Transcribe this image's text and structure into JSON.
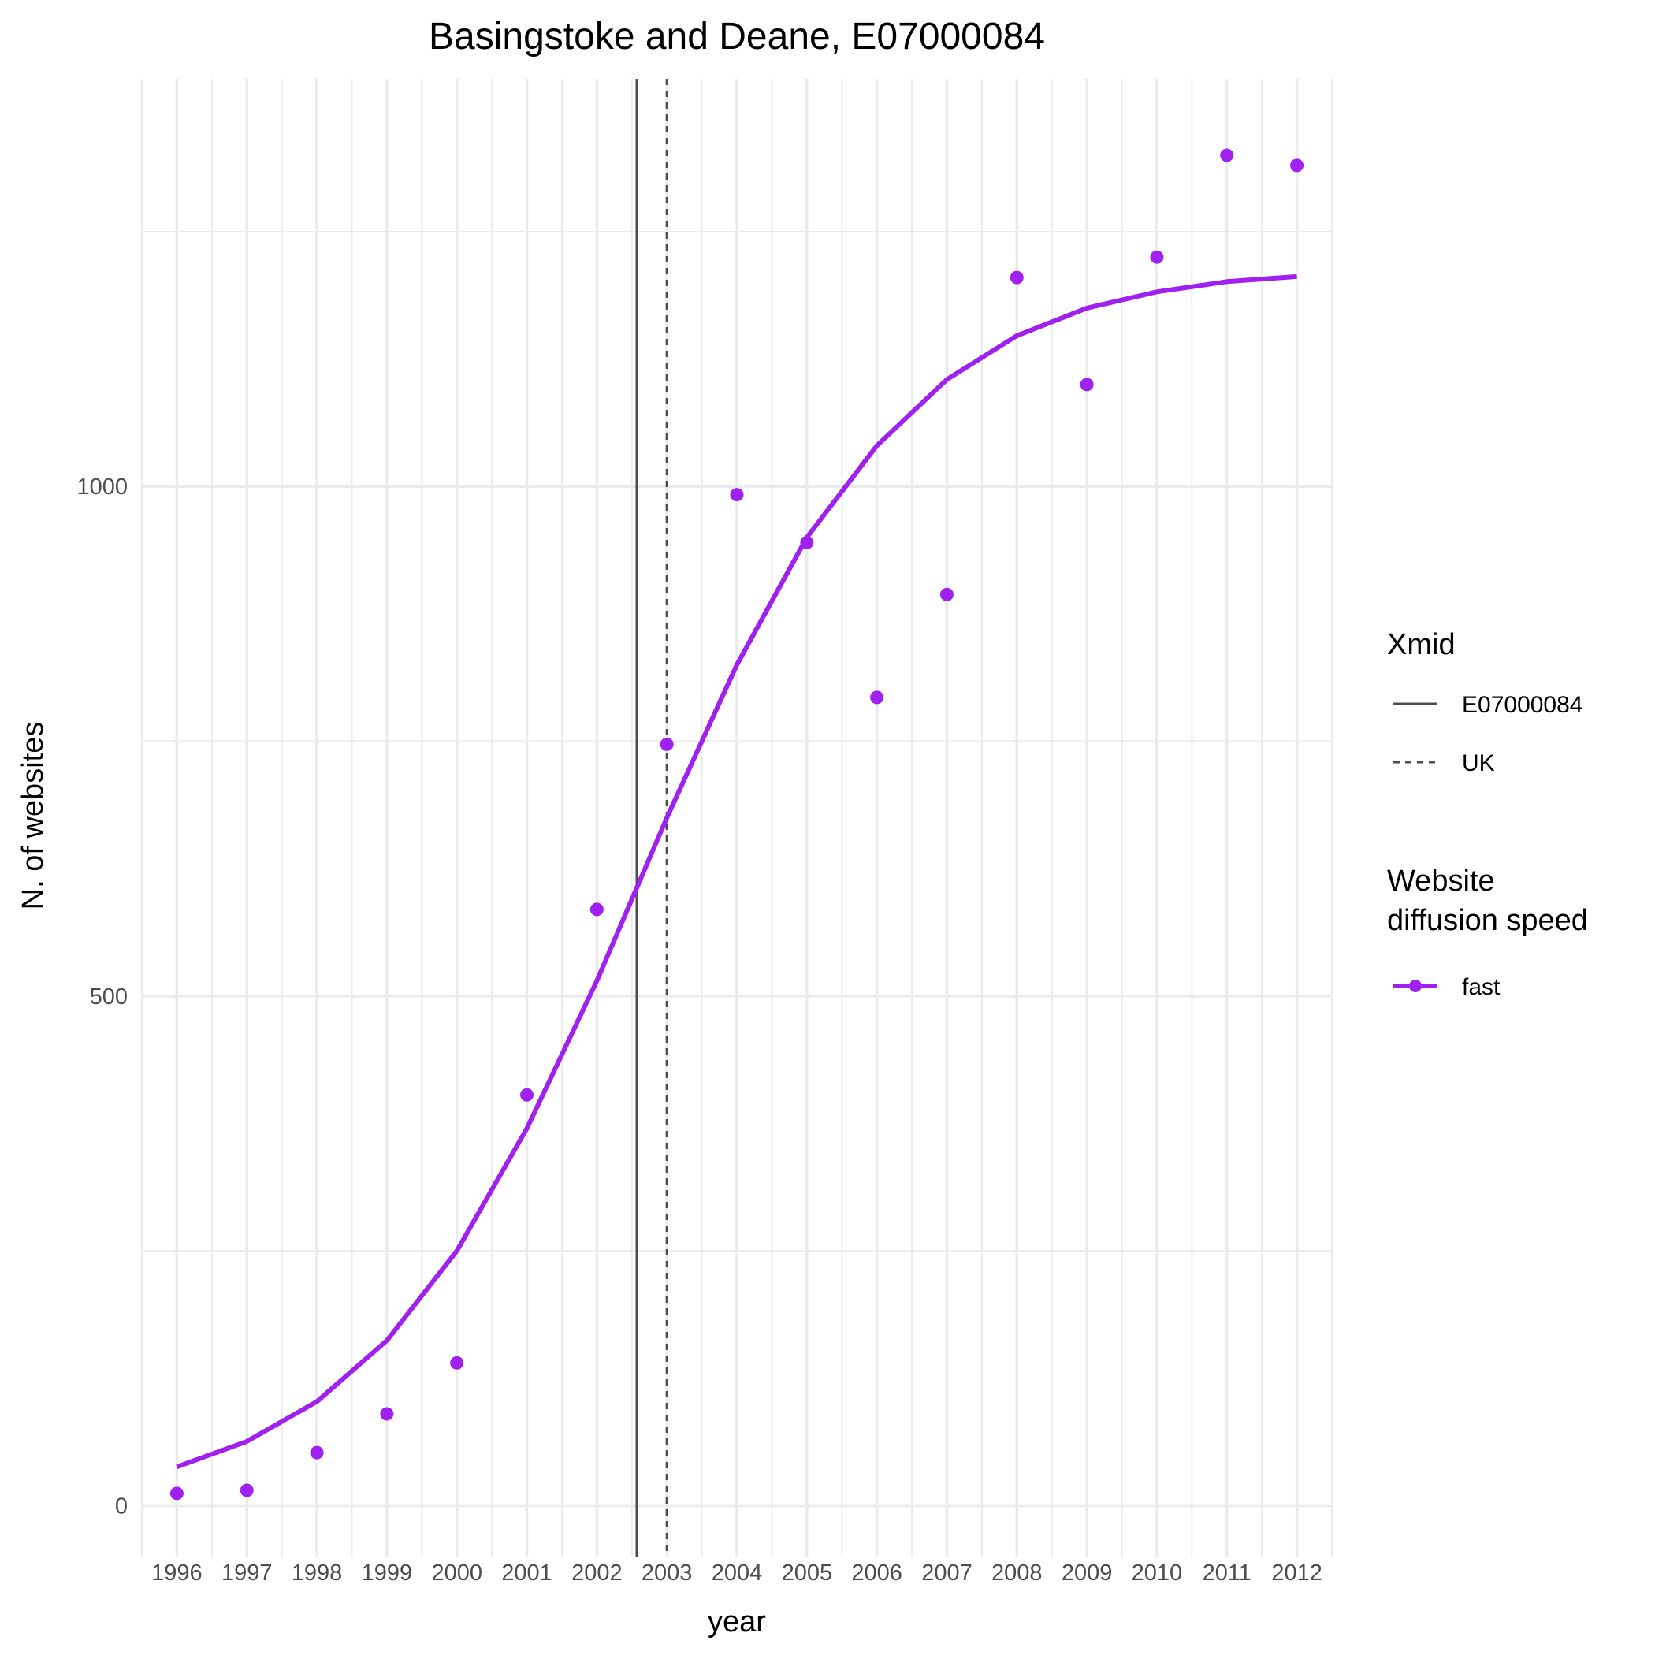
{
  "chart_data": {
    "type": "line",
    "title": "Basingstoke and Deane, E07000084",
    "xlabel": "year",
    "ylabel": "N. of websites",
    "x": [
      1996,
      1997,
      1998,
      1999,
      2000,
      2001,
      2002,
      2003,
      2004,
      2005,
      2006,
      2007,
      2008,
      2009,
      2010,
      2011,
      2012
    ],
    "x_tick_labels": [
      "1996",
      "1997",
      "1998",
      "1999",
      "2000",
      "2001",
      "2002",
      "2003",
      "2004",
      "2005",
      "2006",
      "2007",
      "2008",
      "2009",
      "2010",
      "2011",
      "2012"
    ],
    "y_ticks": [
      0,
      500,
      1000
    ],
    "y_tick_labels": [
      "0",
      "500",
      "1000"
    ],
    "xlim": [
      1995.5,
      2012.5
    ],
    "ylim": [
      -50,
      1400
    ],
    "grid": true,
    "series": [
      {
        "name": "fast",
        "color": "#a020f0",
        "points": [
          12,
          15,
          52,
          90,
          140,
          403,
          585,
          747,
          992,
          945,
          793,
          894,
          1205,
          1100,
          1225,
          1325,
          1315
        ],
        "fitted": [
          38,
          63,
          102,
          162,
          250,
          370,
          515,
          675,
          825,
          950,
          1040,
          1105,
          1148,
          1175,
          1191,
          1201,
          1206
        ]
      }
    ],
    "vlines": [
      {
        "name": "E07000084",
        "x": 2002.57,
        "style": "solid",
        "color": "#4d4d4d"
      },
      {
        "name": "UK",
        "x": 2003.0,
        "style": "dashed",
        "color": "#4d4d4d"
      }
    ],
    "legend": {
      "placement": "right",
      "xmid_title": "Xmid",
      "xmid_items": [
        "E07000084",
        "UK"
      ],
      "speed_title_line1": "Website",
      "speed_title_line2": "diffusion speed",
      "speed_items": [
        "fast"
      ]
    }
  }
}
